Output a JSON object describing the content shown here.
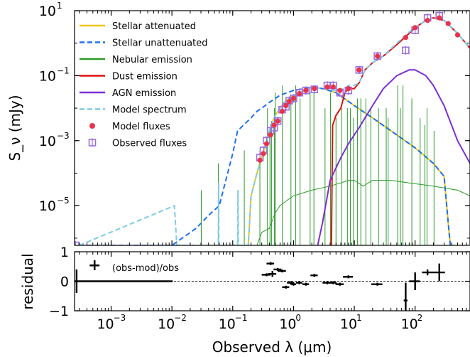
{
  "chart_data": [
    {
      "type": "line",
      "panel": "SED",
      "xlabel": "Observed λ (μm)",
      "ylabel": "S_ν (mJy)",
      "x_scale": "log",
      "y_scale": "log",
      "xlim": [
        0.00025,
        800
      ],
      "ylim": [
        6e-07,
        10
      ],
      "x_ticks": [
        0.001,
        0.01,
        0.1,
        1,
        10,
        100
      ],
      "x_tick_labels": [
        "10",
        "10",
        "10",
        "10",
        "10",
        "10"
      ],
      "x_tick_exponents": [
        "−3",
        "−2",
        "−1",
        "0",
        "1",
        "2"
      ],
      "y_ticks": [
        1e-05,
        0.001,
        0.1,
        10
      ],
      "y_tick_labels": [
        "10",
        "10",
        "10",
        "10"
      ],
      "y_tick_exponents": [
        "−5",
        "−3",
        "−1",
        "1"
      ],
      "legend_position": "top-left",
      "series": [
        {
          "name": "Stellar attenuated",
          "color": "#f0c419",
          "style": "solid",
          "points": [
            [
              0.18,
              6e-07
            ],
            [
              0.2,
              2e-05
            ],
            [
              0.25,
              0.0001
            ],
            [
              0.3,
              0.0003
            ],
            [
              0.4,
              0.002
            ],
            [
              0.5,
              0.006
            ],
            [
              0.7,
              0.015
            ],
            [
              1,
              0.025
            ],
            [
              1.5,
              0.035
            ],
            [
              2,
              0.045
            ],
            [
              3,
              0.04
            ],
            [
              5,
              0.03
            ],
            [
              10,
              0.012
            ],
            [
              20,
              0.005
            ],
            [
              50,
              0.0015
            ],
            [
              100,
              0.0006
            ],
            [
              200,
              0.0002
            ],
            [
              300,
              8e-05
            ],
            [
              350,
              3e-06
            ],
            [
              380,
              6e-07
            ]
          ]
        },
        {
          "name": "Stellar unattenuated",
          "color": "#1f6ff0",
          "style": "dashed",
          "points": [
            [
              0.0003,
              6e-07
            ],
            [
              0.01,
              6e-07
            ],
            [
              0.025,
              2e-06
            ],
            [
              0.04,
              5e-06
            ],
            [
              0.06,
              1e-05
            ],
            [
              0.08,
              8e-05
            ],
            [
              0.1,
              0.0004
            ],
            [
              0.12,
              0.002
            ],
            [
              0.15,
              0.003
            ],
            [
              0.2,
              0.005
            ],
            [
              0.25,
              0.008
            ],
            [
              0.3,
              0.01
            ],
            [
              0.4,
              0.015
            ],
            [
              0.6,
              0.025
            ],
            [
              1,
              0.035
            ],
            [
              1.5,
              0.04
            ],
            [
              2,
              0.045
            ],
            [
              3,
              0.04
            ],
            [
              5,
              0.03
            ],
            [
              10,
              0.012
            ],
            [
              20,
              0.005
            ],
            [
              50,
              0.0015
            ],
            [
              100,
              0.0006
            ],
            [
              200,
              0.0002
            ],
            [
              300,
              8e-05
            ],
            [
              350,
              3e-06
            ],
            [
              380,
              6e-07
            ]
          ]
        },
        {
          "name": "Nebular emission",
          "color": "#2a9a2a",
          "style": "solid",
          "points": [
            [
              0.25,
              6e-07
            ],
            [
              0.3,
              1.5e-06
            ],
            [
              0.4,
              2e-06
            ],
            [
              0.5,
              6e-06
            ],
            [
              0.6,
              1e-05
            ],
            [
              0.8,
              1.5e-05
            ],
            [
              1,
              2e-05
            ],
            [
              2,
              3e-05
            ],
            [
              4,
              4e-05
            ],
            [
              6,
              5e-05
            ],
            [
              8,
              6e-05
            ],
            [
              10,
              6e-05
            ],
            [
              14,
              4e-05
            ],
            [
              20,
              6e-05
            ],
            [
              40,
              6e-05
            ],
            [
              80,
              5e-05
            ],
            [
              200,
              4e-05
            ],
            [
              500,
              3e-05
            ],
            [
              800,
              2e-05
            ]
          ],
          "lines_at": [
            0.0304,
            0.058,
            0.1216,
            0.1549,
            0.2798,
            0.3727,
            0.4102,
            0.434,
            0.4861,
            0.5007,
            0.6563,
            0.9069,
            1.083,
            1.282,
            1.875,
            2.166,
            3.3,
            4.05,
            5,
            6.2,
            7.7,
            8.6,
            9.7,
            11.3,
            12.8,
            15.5,
            18.7,
            25,
            33.5,
            36,
            51.8,
            57.3,
            63.2,
            88.4,
            121,
            145,
            157,
            205
          ],
          "line_peaks": [
            3e-05,
            0.0002,
            3e-05,
            0.0005,
            0.0005,
            0.01,
            0.002,
            0.004,
            0.01,
            0.03,
            0.05,
            0.02,
            0.05,
            0.02,
            0.03,
            0.03,
            0.01,
            0.03,
            0.005,
            0.01,
            0.01,
            0.01,
            0.005,
            0.02,
            0.02,
            0.02,
            0.01,
            0.01,
            0.01,
            0.005,
            0.05,
            0.01,
            0.05,
            0.02,
            0.005,
            0.003,
            0.01,
            0.002
          ]
        },
        {
          "name": "Dust emission",
          "color": "#e01010",
          "style": "solid",
          "points": [
            [
              4.2,
              6e-07
            ],
            [
              4.4,
              0.003
            ],
            [
              5,
              0.006
            ],
            [
              6,
              0.01
            ],
            [
              7,
              0.03
            ],
            [
              8,
              0.04
            ],
            [
              10,
              0.04
            ],
            [
              12,
              0.06
            ],
            [
              15,
              0.15
            ],
            [
              20,
              0.25
            ],
            [
              30,
              0.4
            ],
            [
              50,
              0.9
            ],
            [
              80,
              2
            ],
            [
              100,
              3
            ],
            [
              150,
              5
            ],
            [
              200,
              6
            ],
            [
              300,
              5
            ],
            [
              500,
              2
            ],
            [
              800,
              0.7
            ]
          ]
        },
        {
          "name": "AGN emission",
          "color": "#7b2fd6",
          "style": "solid",
          "points": [
            [
              2.5,
              6e-07
            ],
            [
              3,
              3e-06
            ],
            [
              4,
              6e-05
            ],
            [
              6,
              0.0003
            ],
            [
              8,
              0.0008
            ],
            [
              10,
              0.0015
            ],
            [
              12,
              0.0025
            ],
            [
              15,
              0.005
            ],
            [
              20,
              0.012
            ],
            [
              30,
              0.04
            ],
            [
              50,
              0.1
            ],
            [
              80,
              0.15
            ],
            [
              100,
              0.15
            ],
            [
              150,
              0.1
            ],
            [
              200,
              0.05
            ],
            [
              300,
              0.012
            ],
            [
              500,
              0.001
            ],
            [
              800,
              0.0002
            ]
          ]
        },
        {
          "name": "Model spectrum",
          "color": "#7ecbe3",
          "style": "dashed",
          "points": [
            [
              0.0003,
              6e-07
            ],
            [
              0.011,
              1e-05
            ],
            [
              0.012,
              6e-07
            ],
            [
              0.058,
              6e-07
            ],
            [
              0.0585,
              5e-05
            ],
            [
              0.059,
              6e-07
            ],
            [
              0.12,
              6e-07
            ],
            [
              0.122,
              3e-05
            ],
            [
              0.124,
              6e-07
            ],
            [
              0.18,
              6e-07
            ],
            [
              0.2,
              2e-05
            ],
            [
              0.25,
              0.0001
            ],
            [
              0.3,
              0.0003
            ],
            [
              0.4,
              0.002
            ],
            [
              0.5,
              0.006
            ],
            [
              0.7,
              0.015
            ],
            [
              1,
              0.025
            ],
            [
              1.5,
              0.035
            ],
            [
              2,
              0.045
            ],
            [
              3,
              0.04
            ],
            [
              5,
              0.035
            ],
            [
              7,
              0.04
            ],
            [
              8,
              0.05
            ],
            [
              10,
              0.05
            ],
            [
              12,
              0.06
            ],
            [
              15,
              0.15
            ],
            [
              20,
              0.25
            ],
            [
              30,
              0.4
            ],
            [
              50,
              1
            ],
            [
              80,
              2.2
            ],
            [
              100,
              3
            ],
            [
              150,
              5
            ],
            [
              200,
              6
            ],
            [
              300,
              5
            ],
            [
              500,
              2
            ],
            [
              800,
              0.7
            ]
          ]
        }
      ],
      "model_fluxes": {
        "name": "Model fluxes",
        "color": "#e8334a",
        "points": [
          [
            0.28,
            0.00025
          ],
          [
            0.32,
            0.0004
          ],
          [
            0.36,
            0.0008
          ],
          [
            0.42,
            0.0015
          ],
          [
            0.48,
            0.003
          ],
          [
            0.55,
            0.004
          ],
          [
            0.65,
            0.008
          ],
          [
            0.75,
            0.012
          ],
          [
            0.85,
            0.016
          ],
          [
            1.0,
            0.02
          ],
          [
            1.25,
            0.028
          ],
          [
            1.6,
            0.035
          ],
          [
            2.2,
            0.04
          ],
          [
            3.6,
            0.045
          ],
          [
            4.5,
            0.045
          ],
          [
            5.8,
            0.035
          ],
          [
            8,
            0.04
          ],
          [
            12,
            0.15
          ],
          [
            24,
            0.4
          ],
          [
            70,
            1.5
          ],
          [
            100,
            3
          ],
          [
            160,
            5
          ],
          [
            250,
            6
          ],
          [
            350,
            4
          ],
          [
            500,
            1.8
          ]
        ]
      },
      "observed_fluxes": {
        "name": "Observed fluxes",
        "color": "#9b6fe0",
        "points": [
          [
            0.00026,
            6e-07
          ],
          [
            0.28,
            0.0003
          ],
          [
            0.32,
            0.0005
          ],
          [
            0.36,
            0.001
          ],
          [
            0.42,
            0.002
          ],
          [
            0.48,
            0.0025
          ],
          [
            0.55,
            0.004
          ],
          [
            0.65,
            0.009
          ],
          [
            0.75,
            0.011
          ],
          [
            0.85,
            0.017
          ],
          [
            1.0,
            0.02
          ],
          [
            1.25,
            0.03
          ],
          [
            1.6,
            0.035
          ],
          [
            2.2,
            0.038
          ],
          [
            3.6,
            0.05
          ],
          [
            4.5,
            0.05
          ],
          [
            5.8,
            0.03
          ],
          [
            8,
            0.035
          ],
          [
            12,
            0.15
          ],
          [
            24,
            0.4
          ],
          [
            70,
            0.6
          ],
          [
            100,
            2.5
          ],
          [
            160,
            6
          ],
          [
            250,
            7
          ]
        ]
      }
    },
    {
      "type": "scatter",
      "panel": "residual",
      "xlabel": "Observed λ (μm)",
      "ylabel": "residual",
      "x_scale": "log",
      "xlim": [
        0.00025,
        800
      ],
      "ylim": [
        -1,
        1
      ],
      "y_ticks": [
        -1,
        0,
        1
      ],
      "y_tick_labels": [
        "−1",
        "0",
        "1"
      ],
      "legend": "(obs-mod)/obs",
      "reference_line": 0,
      "points": [
        {
          "x": 0.00027,
          "y": 0.0,
          "xerr": 0.01,
          "yerr": 0.4
        },
        {
          "x": 0.36,
          "y": 0.22,
          "xerr": 0.06,
          "yerr": 0.05
        },
        {
          "x": 0.42,
          "y": 0.6,
          "xerr": 0.06,
          "yerr": 0.05
        },
        {
          "x": 0.45,
          "y": 0.25,
          "xerr": 0.07,
          "yerr": 0.1
        },
        {
          "x": 0.55,
          "y": 0.4,
          "xerr": 0.08,
          "yerr": 0.05
        },
        {
          "x": 0.65,
          "y": 0.35,
          "xerr": 0.1,
          "yerr": 0.05
        },
        {
          "x": 0.75,
          "y": -0.2,
          "xerr": 0.1,
          "yerr": 0.05
        },
        {
          "x": 0.9,
          "y": -0.05,
          "xerr": 0.12,
          "yerr": 0.05
        },
        {
          "x": 1.0,
          "y": -0.1,
          "xerr": 0.1,
          "yerr": 0.05
        },
        {
          "x": 1.25,
          "y": -0.05,
          "xerr": 0.15,
          "yerr": 0.05
        },
        {
          "x": 1.6,
          "y": -0.1,
          "xerr": 0.2,
          "yerr": 0.05
        },
        {
          "x": 2.2,
          "y": 0.2,
          "xerr": 0.3,
          "yerr": 0.05
        },
        {
          "x": 3.6,
          "y": -0.05,
          "xerr": 0.6,
          "yerr": 0.05
        },
        {
          "x": 4.5,
          "y": -0.05,
          "xerr": 0.6,
          "yerr": 0.05
        },
        {
          "x": 5.8,
          "y": -0.1,
          "xerr": 0.9,
          "yerr": 0.05
        },
        {
          "x": 8,
          "y": 0.15,
          "xerr": 1.5,
          "yerr": 0.05
        },
        {
          "x": 24,
          "y": -0.1,
          "xerr": 5,
          "yerr": 0.05
        },
        {
          "x": 70,
          "y": -0.65,
          "xerr": 5,
          "yerr": 0.6
        },
        {
          "x": 100,
          "y": 0.0,
          "xerr": 20,
          "yerr": 0.3
        },
        {
          "x": 160,
          "y": 0.3,
          "xerr": 30,
          "yerr": 0.1
        },
        {
          "x": 250,
          "y": 0.3,
          "xerr": 60,
          "yerr": 0.3
        }
      ]
    }
  ]
}
